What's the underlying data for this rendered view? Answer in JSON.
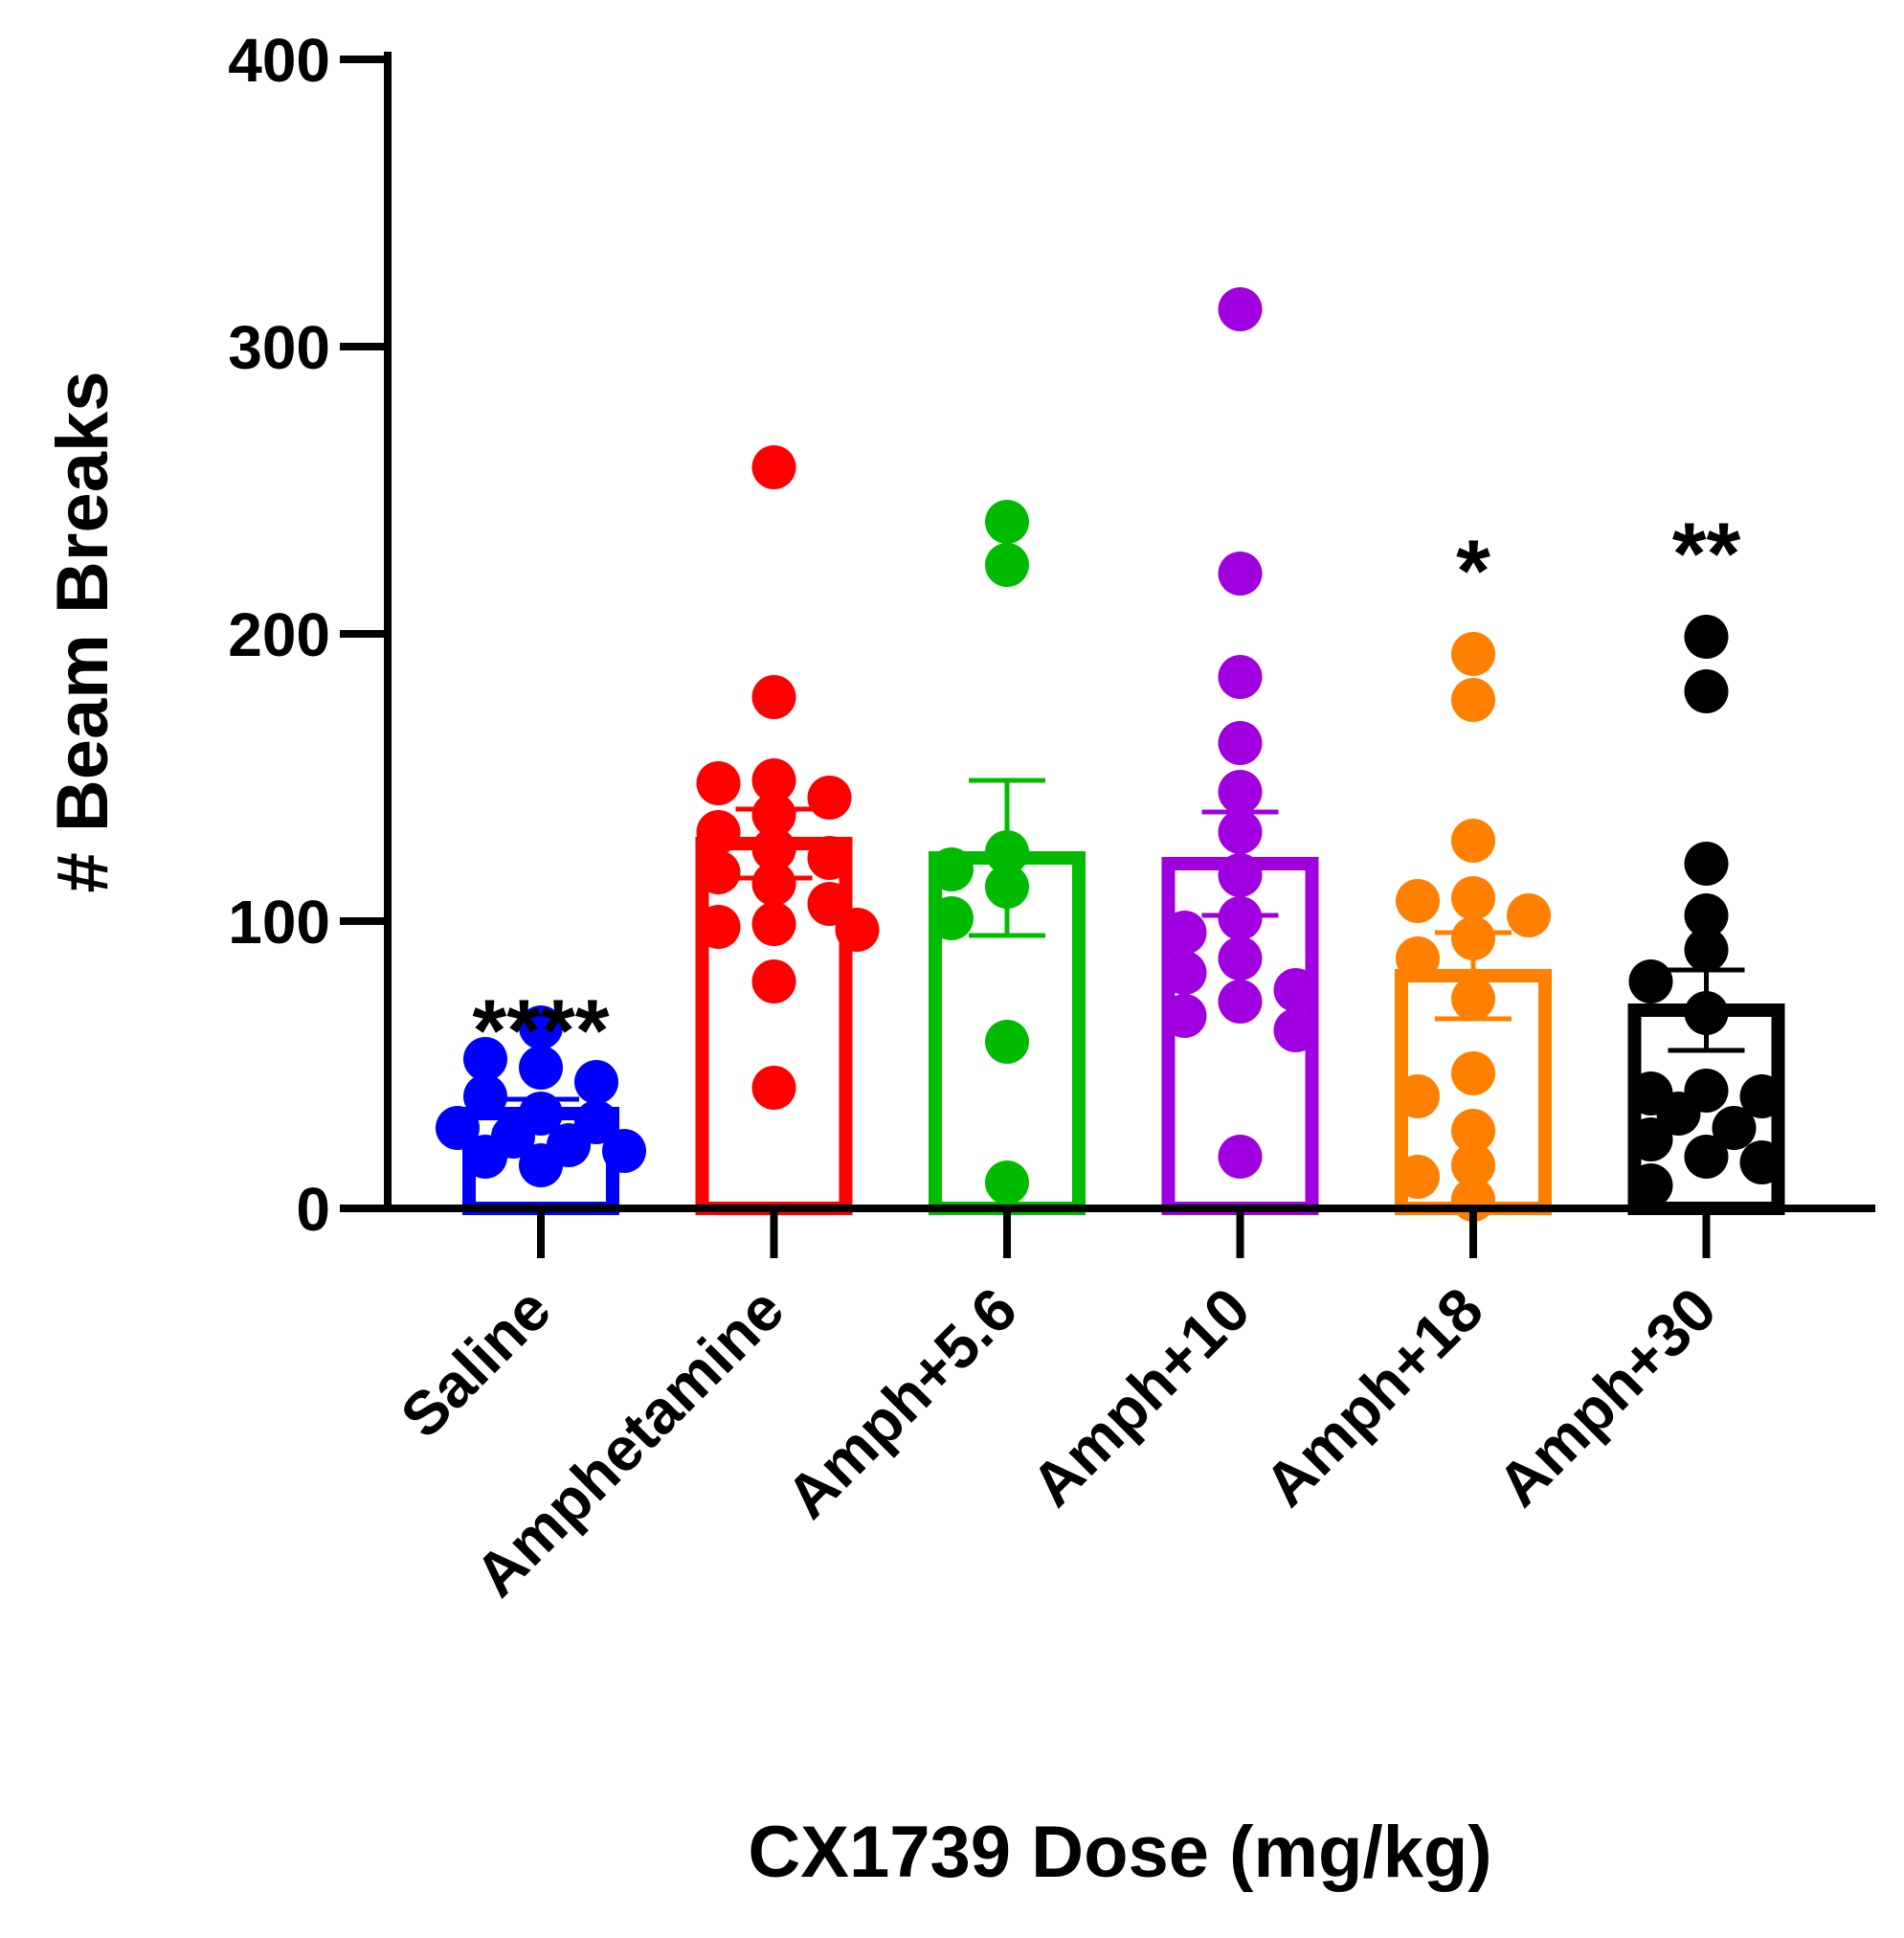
{
  "chart_data": {
    "type": "bar",
    "title": "",
    "xlabel": "CX1739 Dose (mg/kg)",
    "ylabel": "# Beam Breaks",
    "ylim": [
      0,
      400
    ],
    "yticks": [
      "0",
      "100",
      "200",
      "300",
      "400"
    ],
    "grid": false,
    "legend": "none",
    "categories": [
      "Saline",
      "Amphetamine",
      "Amph+5.6",
      "Amph+10",
      "Amph+18",
      "Amph+30"
    ],
    "series": [
      {
        "name": "Saline",
        "color": "#0000ff",
        "mean": 33,
        "sem": 5,
        "significance": "****",
        "points": [
          63,
          52,
          49,
          44,
          39,
          33,
          30,
          28,
          25,
          22,
          20,
          18,
          15
        ]
      },
      {
        "name": "Amphetamine",
        "color": "#ff0000",
        "mean": 127,
        "sem": 12,
        "significance": "",
        "points": [
          258,
          178,
          149,
          148,
          143,
          137,
          131,
          125,
          122,
          117,
          113,
          106,
          99,
          98,
          97,
          79,
          42
        ]
      },
      {
        "name": "Amph+5.6",
        "color": "#00bb00",
        "mean": 122,
        "sem": 27,
        "significance": "",
        "points": [
          239,
          224,
          124,
          118,
          112,
          101,
          58,
          9
        ]
      },
      {
        "name": "Amph+10",
        "color": "#a000e0",
        "mean": 120,
        "sem": 18,
        "significance": "",
        "points": [
          313,
          221,
          185,
          162,
          145,
          131,
          116,
          101,
          96,
          87,
          82,
          76,
          72,
          67,
          62,
          18
        ]
      },
      {
        "name": "Amph+18",
        "color": "#ff8000",
        "mean": 81,
        "sem": 15,
        "significance": "*",
        "points": [
          193,
          177,
          128,
          108,
          107,
          102,
          94,
          87,
          73,
          47,
          39,
          27,
          15,
          11,
          3
        ]
      },
      {
        "name": "Amph+30",
        "color": "#000000",
        "mean": 69,
        "sem": 14,
        "significance": "**",
        "points": [
          199,
          180,
          120,
          102,
          90,
          79,
          68,
          41,
          40,
          39,
          33,
          28,
          24,
          18,
          16,
          8
        ]
      }
    ]
  }
}
